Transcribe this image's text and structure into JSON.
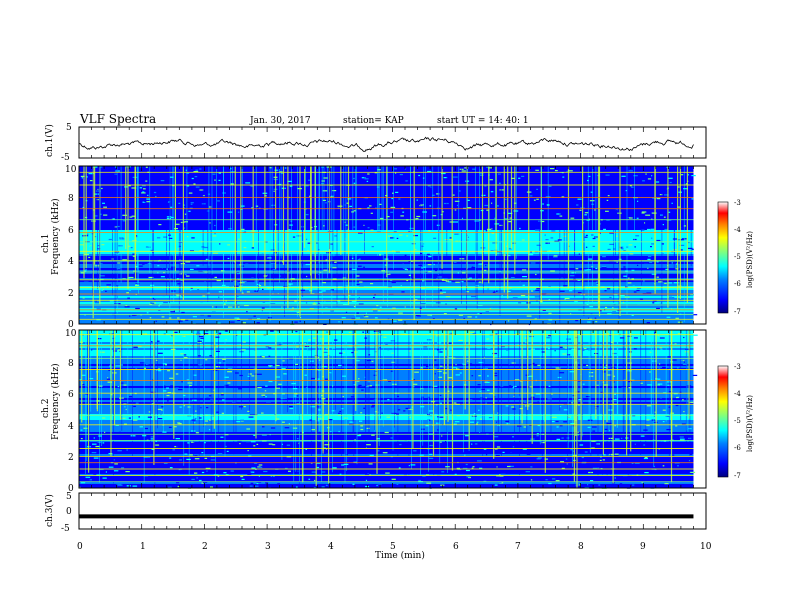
{
  "header": {
    "title": "VLF Spectra",
    "date": "Jan. 30, 2017",
    "station": "station= KAP",
    "start": "start  UT =   14: 40: 1"
  },
  "chart_data": [
    {
      "type": "line",
      "name": "ch1-waveform",
      "ylabel": "ch.1(V)",
      "ylim": [
        -5,
        5
      ],
      "yticks": [
        "5",
        "-5"
      ],
      "xlim": [
        0,
        10
      ],
      "description": "noisy trace near 0 V across 0–9.8 min"
    },
    {
      "type": "heatmap",
      "name": "ch1-spectrogram",
      "ylabel_top": "ch.1",
      "ylabel": "Frequency (kHz)",
      "ylim": [
        0,
        10
      ],
      "yticks": [
        "0",
        "2",
        "4",
        "6",
        "8",
        "10"
      ],
      "xlim": [
        0,
        10
      ],
      "colorbar": {
        "label": "log(PSD)(V²/Hz)",
        "range": [
          -7,
          -3
        ],
        "ticks": [
          "-3",
          "-4",
          "-5",
          "-6",
          "-7"
        ]
      }
    },
    {
      "type": "heatmap",
      "name": "ch2-spectrogram",
      "ylabel_top": "ch.2",
      "ylabel": "Frequency (kHz)",
      "ylim": [
        0,
        10
      ],
      "yticks": [
        "0",
        "2",
        "4",
        "6",
        "8",
        "10"
      ],
      "xlim": [
        0,
        10
      ],
      "colorbar": {
        "label": "log(PSD)(V²/Hz)",
        "range": [
          -7,
          -3
        ],
        "ticks": [
          "-3",
          "-4",
          "-5",
          "-6",
          "-7"
        ]
      }
    },
    {
      "type": "line",
      "name": "ch3-waveform",
      "ylabel": "ch.3(V)",
      "ylim": [
        -5,
        5
      ],
      "yticks": [
        "5",
        "0",
        "-5"
      ],
      "xlim": [
        0,
        10
      ],
      "series": [
        {
          "x": [
            0,
            9.8
          ],
          "values": [
            -1.5,
            -1.5
          ]
        }
      ]
    }
  ],
  "xaxis": {
    "label": "Time (min)",
    "ticks": [
      "0",
      "1",
      "2",
      "3",
      "4",
      "5",
      "6",
      "7",
      "8",
      "9",
      "10"
    ]
  },
  "colorscale": [
    "#00007f",
    "#0000ff",
    "#007fff",
    "#00ffff",
    "#7fff7f",
    "#ffff00",
    "#ff7f00",
    "#ff0000",
    "#ffffff"
  ]
}
